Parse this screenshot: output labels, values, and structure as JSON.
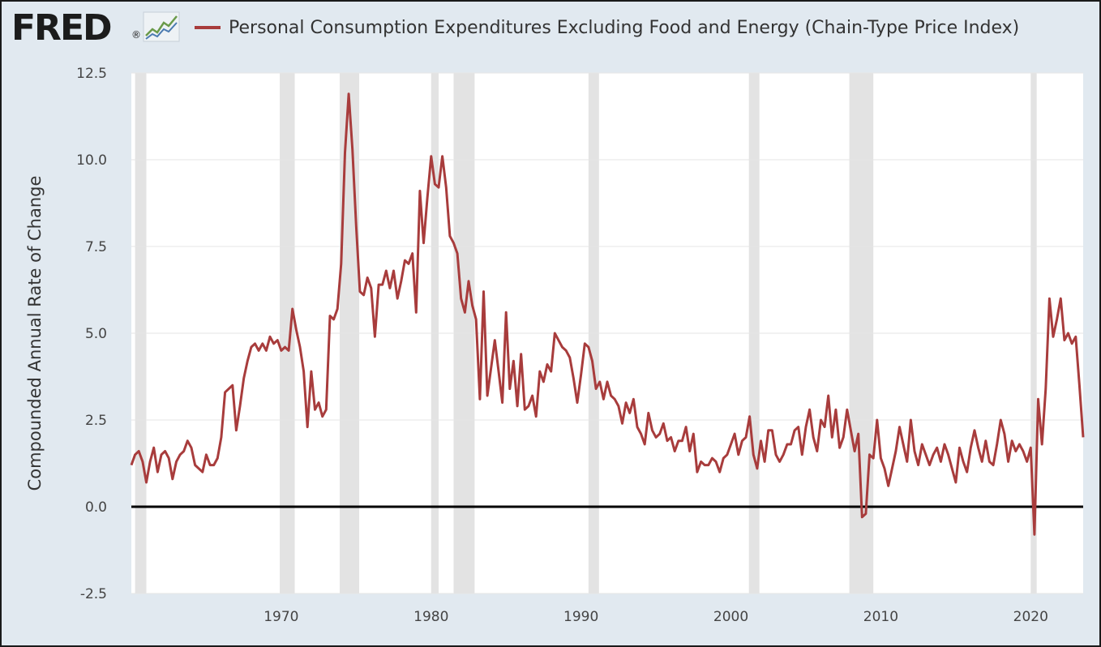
{
  "header": {
    "logo_text": "FRED",
    "logo_mark": "®",
    "logo_icon": "line-chart-icon"
  },
  "colors": {
    "series": "#a83c3c",
    "recession": "#e3e3e3",
    "background": "#e1e9f0",
    "plot": "#ffffff",
    "grid": "#e6e6e6",
    "zero_line": "#000000"
  },
  "chart_data": {
    "type": "line",
    "title": "",
    "xlabel": "",
    "ylabel": "Compounded Annual Rate of Change",
    "xlim": [
      1960.0,
      2023.5
    ],
    "ylim": [
      -2.5,
      12.5
    ],
    "x_ticks": [
      "1970",
      "1980",
      "1990",
      "2000",
      "2010",
      "2020"
    ],
    "y_ticks": [
      "12.5",
      "10.0",
      "7.5",
      "5.0",
      "2.5",
      "0.0",
      "-2.5"
    ],
    "grid": "horizontal",
    "legend_position": "top",
    "recessions": [
      [
        1960.25,
        1961.0
      ],
      [
        1969.9,
        1970.9
      ],
      [
        1973.9,
        1975.2
      ],
      [
        1980.0,
        1980.5
      ],
      [
        1981.5,
        1982.9
      ],
      [
        1990.5,
        1991.2
      ],
      [
        2001.2,
        2001.9
      ],
      [
        2007.9,
        2009.5
      ],
      [
        2020.0,
        2020.4
      ]
    ],
    "series": [
      {
        "name": "Personal Consumption Expenditures Excluding Food and Energy (Chain-Type Price Index)",
        "points": [
          [
            1960.0,
            1.2
          ],
          [
            1960.25,
            1.5
          ],
          [
            1960.5,
            1.6
          ],
          [
            1960.75,
            1.3
          ],
          [
            1961.0,
            0.7
          ],
          [
            1961.25,
            1.3
          ],
          [
            1961.5,
            1.7
          ],
          [
            1961.75,
            1.0
          ],
          [
            1962.0,
            1.5
          ],
          [
            1962.25,
            1.6
          ],
          [
            1962.5,
            1.4
          ],
          [
            1962.75,
            0.8
          ],
          [
            1963.0,
            1.3
          ],
          [
            1963.25,
            1.5
          ],
          [
            1963.5,
            1.6
          ],
          [
            1963.75,
            1.9
          ],
          [
            1964.0,
            1.7
          ],
          [
            1964.25,
            1.2
          ],
          [
            1964.5,
            1.1
          ],
          [
            1964.75,
            1.0
          ],
          [
            1965.0,
            1.5
          ],
          [
            1965.25,
            1.2
          ],
          [
            1965.5,
            1.2
          ],
          [
            1965.75,
            1.4
          ],
          [
            1966.0,
            2.0
          ],
          [
            1966.25,
            3.3
          ],
          [
            1966.5,
            3.4
          ],
          [
            1966.75,
            3.5
          ],
          [
            1967.0,
            2.2
          ],
          [
            1967.25,
            2.9
          ],
          [
            1967.5,
            3.7
          ],
          [
            1967.75,
            4.2
          ],
          [
            1968.0,
            4.6
          ],
          [
            1968.25,
            4.7
          ],
          [
            1968.5,
            4.5
          ],
          [
            1968.75,
            4.7
          ],
          [
            1969.0,
            4.5
          ],
          [
            1969.25,
            4.9
          ],
          [
            1969.5,
            4.7
          ],
          [
            1969.75,
            4.8
          ],
          [
            1970.0,
            4.5
          ],
          [
            1970.25,
            4.6
          ],
          [
            1970.5,
            4.5
          ],
          [
            1970.75,
            5.7
          ],
          [
            1971.0,
            5.1
          ],
          [
            1971.25,
            4.6
          ],
          [
            1971.5,
            3.9
          ],
          [
            1971.75,
            2.3
          ],
          [
            1972.0,
            3.9
          ],
          [
            1972.25,
            2.8
          ],
          [
            1972.5,
            3.0
          ],
          [
            1972.75,
            2.6
          ],
          [
            1973.0,
            2.8
          ],
          [
            1973.25,
            5.5
          ],
          [
            1973.5,
            5.4
          ],
          [
            1973.75,
            5.7
          ],
          [
            1974.0,
            7.0
          ],
          [
            1974.25,
            10.2
          ],
          [
            1974.5,
            11.9
          ],
          [
            1974.75,
            10.3
          ],
          [
            1975.0,
            8.1
          ],
          [
            1975.25,
            6.2
          ],
          [
            1975.5,
            6.1
          ],
          [
            1975.75,
            6.6
          ],
          [
            1976.0,
            6.3
          ],
          [
            1976.25,
            4.9
          ],
          [
            1976.5,
            6.4
          ],
          [
            1976.75,
            6.4
          ],
          [
            1977.0,
            6.8
          ],
          [
            1977.25,
            6.3
          ],
          [
            1977.5,
            6.8
          ],
          [
            1977.75,
            6.0
          ],
          [
            1978.0,
            6.5
          ],
          [
            1978.25,
            7.1
          ],
          [
            1978.5,
            7.0
          ],
          [
            1978.75,
            7.3
          ],
          [
            1979.0,
            5.6
          ],
          [
            1979.25,
            9.1
          ],
          [
            1979.5,
            7.6
          ],
          [
            1979.75,
            8.9
          ],
          [
            1980.0,
            10.1
          ],
          [
            1980.25,
            9.3
          ],
          [
            1980.5,
            9.2
          ],
          [
            1980.75,
            10.1
          ],
          [
            1981.0,
            9.2
          ],
          [
            1981.25,
            7.8
          ],
          [
            1981.5,
            7.6
          ],
          [
            1981.75,
            7.3
          ],
          [
            1982.0,
            6.0
          ],
          [
            1982.25,
            5.6
          ],
          [
            1982.5,
            6.5
          ],
          [
            1982.75,
            5.8
          ],
          [
            1983.0,
            5.4
          ],
          [
            1983.25,
            3.1
          ],
          [
            1983.5,
            6.2
          ],
          [
            1983.75,
            3.2
          ],
          [
            1984.0,
            4.0
          ],
          [
            1984.25,
            4.8
          ],
          [
            1984.5,
            3.9
          ],
          [
            1984.75,
            3.0
          ],
          [
            1985.0,
            5.6
          ],
          [
            1985.25,
            3.4
          ],
          [
            1985.5,
            4.2
          ],
          [
            1985.75,
            2.9
          ],
          [
            1986.0,
            4.4
          ],
          [
            1986.25,
            2.8
          ],
          [
            1986.5,
            2.9
          ],
          [
            1986.75,
            3.2
          ],
          [
            1987.0,
            2.6
          ],
          [
            1987.25,
            3.9
          ],
          [
            1987.5,
            3.6
          ],
          [
            1987.75,
            4.1
          ],
          [
            1988.0,
            3.9
          ],
          [
            1988.25,
            5.0
          ],
          [
            1988.5,
            4.8
          ],
          [
            1988.75,
            4.6
          ],
          [
            1989.0,
            4.5
          ],
          [
            1989.25,
            4.3
          ],
          [
            1989.5,
            3.7
          ],
          [
            1989.75,
            3.0
          ],
          [
            1990.0,
            3.8
          ],
          [
            1990.25,
            4.7
          ],
          [
            1990.5,
            4.6
          ],
          [
            1990.75,
            4.2
          ],
          [
            1991.0,
            3.4
          ],
          [
            1991.25,
            3.6
          ],
          [
            1991.5,
            3.1
          ],
          [
            1991.75,
            3.6
          ],
          [
            1992.0,
            3.2
          ],
          [
            1992.25,
            3.1
          ],
          [
            1992.5,
            2.9
          ],
          [
            1992.75,
            2.4
          ],
          [
            1993.0,
            3.0
          ],
          [
            1993.25,
            2.7
          ],
          [
            1993.5,
            3.1
          ],
          [
            1993.75,
            2.3
          ],
          [
            1994.0,
            2.1
          ],
          [
            1994.25,
            1.8
          ],
          [
            1994.5,
            2.7
          ],
          [
            1994.75,
            2.2
          ],
          [
            1995.0,
            2.0
          ],
          [
            1995.25,
            2.1
          ],
          [
            1995.5,
            2.4
          ],
          [
            1995.75,
            1.9
          ],
          [
            1996.0,
            2.0
          ],
          [
            1996.25,
            1.6
          ],
          [
            1996.5,
            1.9
          ],
          [
            1996.75,
            1.9
          ],
          [
            1997.0,
            2.3
          ],
          [
            1997.25,
            1.6
          ],
          [
            1997.5,
            2.1
          ],
          [
            1997.75,
            1.0
          ],
          [
            1998.0,
            1.3
          ],
          [
            1998.25,
            1.2
          ],
          [
            1998.5,
            1.2
          ],
          [
            1998.75,
            1.4
          ],
          [
            1999.0,
            1.3
          ],
          [
            1999.25,
            1.0
          ],
          [
            1999.5,
            1.4
          ],
          [
            1999.75,
            1.5
          ],
          [
            2000.0,
            1.8
          ],
          [
            2000.25,
            2.1
          ],
          [
            2000.5,
            1.5
          ],
          [
            2000.75,
            1.9
          ],
          [
            2001.0,
            2.0
          ],
          [
            2001.25,
            2.6
          ],
          [
            2001.5,
            1.5
          ],
          [
            2001.75,
            1.1
          ],
          [
            2002.0,
            1.9
          ],
          [
            2002.25,
            1.3
          ],
          [
            2002.5,
            2.2
          ],
          [
            2002.75,
            2.2
          ],
          [
            2003.0,
            1.5
          ],
          [
            2003.25,
            1.3
          ],
          [
            2003.5,
            1.5
          ],
          [
            2003.75,
            1.8
          ],
          [
            2004.0,
            1.8
          ],
          [
            2004.25,
            2.2
          ],
          [
            2004.5,
            2.3
          ],
          [
            2004.75,
            1.5
          ],
          [
            2005.0,
            2.3
          ],
          [
            2005.25,
            2.8
          ],
          [
            2005.5,
            2.0
          ],
          [
            2005.75,
            1.6
          ],
          [
            2006.0,
            2.5
          ],
          [
            2006.25,
            2.3
          ],
          [
            2006.5,
            3.2
          ],
          [
            2006.75,
            2.0
          ],
          [
            2007.0,
            2.8
          ],
          [
            2007.25,
            1.7
          ],
          [
            2007.5,
            2.0
          ],
          [
            2007.75,
            2.8
          ],
          [
            2008.0,
            2.2
          ],
          [
            2008.25,
            1.6
          ],
          [
            2008.5,
            2.1
          ],
          [
            2008.75,
            -0.3
          ],
          [
            2009.0,
            -0.2
          ],
          [
            2009.25,
            1.5
          ],
          [
            2009.5,
            1.4
          ],
          [
            2009.75,
            2.5
          ],
          [
            2010.0,
            1.4
          ],
          [
            2010.25,
            1.1
          ],
          [
            2010.5,
            0.6
          ],
          [
            2010.75,
            1.1
          ],
          [
            2011.0,
            1.6
          ],
          [
            2011.25,
            2.3
          ],
          [
            2011.5,
            1.8
          ],
          [
            2011.75,
            1.3
          ],
          [
            2012.0,
            2.5
          ],
          [
            2012.25,
            1.6
          ],
          [
            2012.5,
            1.2
          ],
          [
            2012.75,
            1.8
          ],
          [
            2013.0,
            1.5
          ],
          [
            2013.25,
            1.2
          ],
          [
            2013.5,
            1.5
          ],
          [
            2013.75,
            1.7
          ],
          [
            2014.0,
            1.3
          ],
          [
            2014.25,
            1.8
          ],
          [
            2014.5,
            1.5
          ],
          [
            2014.75,
            1.1
          ],
          [
            2015.0,
            0.7
          ],
          [
            2015.25,
            1.7
          ],
          [
            2015.5,
            1.3
          ],
          [
            2015.75,
            1.0
          ],
          [
            2016.0,
            1.7
          ],
          [
            2016.25,
            2.2
          ],
          [
            2016.5,
            1.7
          ],
          [
            2016.75,
            1.3
          ],
          [
            2017.0,
            1.9
          ],
          [
            2017.25,
            1.3
          ],
          [
            2017.5,
            1.2
          ],
          [
            2017.75,
            1.8
          ],
          [
            2018.0,
            2.5
          ],
          [
            2018.25,
            2.1
          ],
          [
            2018.5,
            1.3
          ],
          [
            2018.75,
            1.9
          ],
          [
            2019.0,
            1.6
          ],
          [
            2019.25,
            1.8
          ],
          [
            2019.5,
            1.6
          ],
          [
            2019.75,
            1.3
          ],
          [
            2020.0,
            1.7
          ],
          [
            2020.25,
            -0.8
          ],
          [
            2020.5,
            3.1
          ],
          [
            2020.75,
            1.8
          ],
          [
            2021.0,
            3.4
          ],
          [
            2021.25,
            6.0
          ],
          [
            2021.5,
            4.9
          ],
          [
            2021.75,
            5.4
          ],
          [
            2022.0,
            6.0
          ],
          [
            2022.25,
            4.8
          ],
          [
            2022.5,
            5.0
          ],
          [
            2022.75,
            4.7
          ],
          [
            2023.0,
            4.9
          ],
          [
            2023.25,
            3.5
          ],
          [
            2023.5,
            2.0
          ]
        ]
      }
    ]
  }
}
